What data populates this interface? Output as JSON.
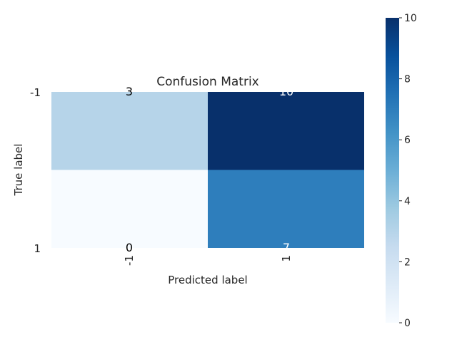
{
  "chart_data": {
    "type": "heatmap",
    "title": "Confusion Matrix",
    "xlabel": "Predicted label",
    "ylabel": "True label",
    "row_labels": [
      "-1",
      "1"
    ],
    "col_labels": [
      "-1",
      "1"
    ],
    "values": [
      [
        3,
        10
      ],
      [
        0,
        7
      ]
    ],
    "colormap": "Blues",
    "vmin": 0,
    "vmax": 10,
    "colorbar_ticks": [
      "0",
      "2",
      "4",
      "6",
      "8",
      "10"
    ],
    "colors": {
      "low": "#f7fbff",
      "high": "#08306b",
      "text_dark": "#000000",
      "text_light": "#ffffff",
      "label_text": "#262626"
    }
  }
}
